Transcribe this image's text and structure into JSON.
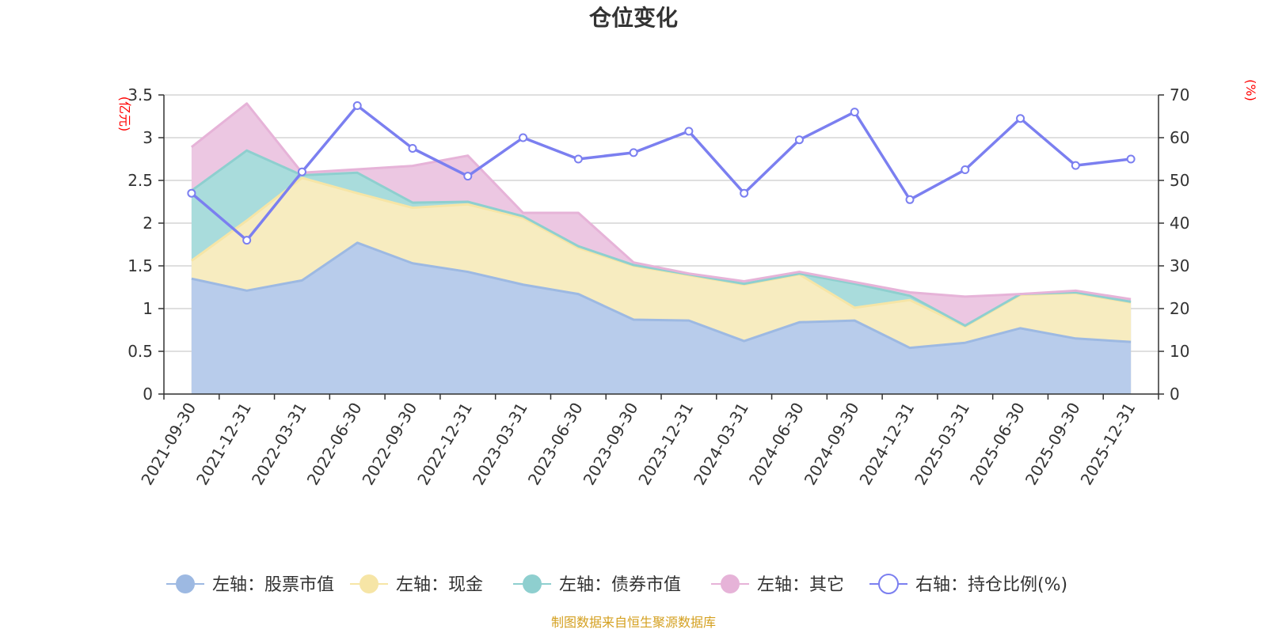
{
  "chart_data": {
    "type": "area",
    "title": "仓位变化",
    "left_axis_label": "(亿元)",
    "right_axis_label": "(%)",
    "left_ylim": [
      0,
      3.5
    ],
    "right_ylim": [
      0,
      70
    ],
    "left_ticks": [
      0,
      0.5,
      1,
      1.5,
      2,
      2.5,
      3,
      3.5
    ],
    "left_tick_labels": [
      "0",
      "0.5",
      "1",
      "1.5",
      "2",
      "2.5",
      "3",
      "3.5"
    ],
    "right_ticks": [
      0,
      10,
      20,
      30,
      40,
      50,
      60,
      70
    ],
    "right_tick_labels": [
      "0",
      "10",
      "20",
      "30",
      "40",
      "50",
      "60",
      "70"
    ],
    "categories": [
      "2021-09-30",
      "2021-12-31",
      "2022-03-31",
      "2022-06-30",
      "2022-09-30",
      "2022-12-31",
      "2023-03-31",
      "2023-06-30",
      "2023-09-30",
      "2023-12-31",
      "2024-03-31",
      "2024-06-30",
      "2024-09-30",
      "2024-12-31",
      "2025-03-31",
      "2025-06-30",
      "2025-09-30",
      "2025-12-31"
    ],
    "series": [
      {
        "name": "左轴：股票市值",
        "axis": "left",
        "stacked": true,
        "color": "#9db9e2",
        "fill": "#b8cceb",
        "values": [
          1.35,
          1.21,
          1.33,
          1.77,
          1.53,
          1.43,
          1.28,
          1.17,
          0.87,
          0.86,
          0.62,
          0.84,
          0.86,
          0.54,
          0.6,
          0.77,
          0.65,
          0.61
        ]
      },
      {
        "name": "左轴：现金",
        "axis": "left",
        "stacked": true,
        "color": "#f6e5a6",
        "fill": "#f7ecc0",
        "values": [
          0.21,
          0.82,
          1.2,
          0.58,
          0.65,
          0.79,
          0.78,
          0.54,
          0.63,
          0.53,
          0.66,
          0.56,
          0.15,
          0.56,
          0.19,
          0.39,
          0.53,
          0.46
        ]
      },
      {
        "name": "左轴：债券市值",
        "axis": "left",
        "stacked": true,
        "color": "#8ecfcf",
        "fill": "#a9dcdc",
        "values": [
          0.82,
          0.82,
          0.03,
          0.24,
          0.06,
          0.03,
          0.02,
          0.02,
          0.01,
          0.01,
          0.01,
          0.01,
          0.28,
          0.05,
          0.01,
          0.01,
          0.01,
          0.01
        ]
      },
      {
        "name": "左轴：其它",
        "axis": "left",
        "stacked": true,
        "color": "#e6b3d8",
        "fill": "#ecc7e2",
        "values": [
          0.51,
          0.55,
          0.03,
          0.04,
          0.43,
          0.54,
          0.04,
          0.39,
          0.03,
          0.01,
          0.03,
          0.02,
          0.02,
          0.04,
          0.34,
          0.0,
          0.02,
          0.03
        ]
      },
      {
        "name": "右轴：持仓比例(%)",
        "axis": "right",
        "type": "line",
        "color": "#7b7ff0",
        "values": [
          47.0,
          36.0,
          52.0,
          67.5,
          57.5,
          51.0,
          60.0,
          55.0,
          56.5,
          61.5,
          47.0,
          59.5,
          66.0,
          45.5,
          52.5,
          64.5,
          53.5,
          55.0
        ]
      }
    ]
  },
  "footer": {
    "text": "制图数据来自恒生聚源数据库",
    "color": "#d4a020"
  },
  "colors": {
    "axis_label": "#ff0000",
    "grid": "#cccccc",
    "axis": "#333333"
  }
}
